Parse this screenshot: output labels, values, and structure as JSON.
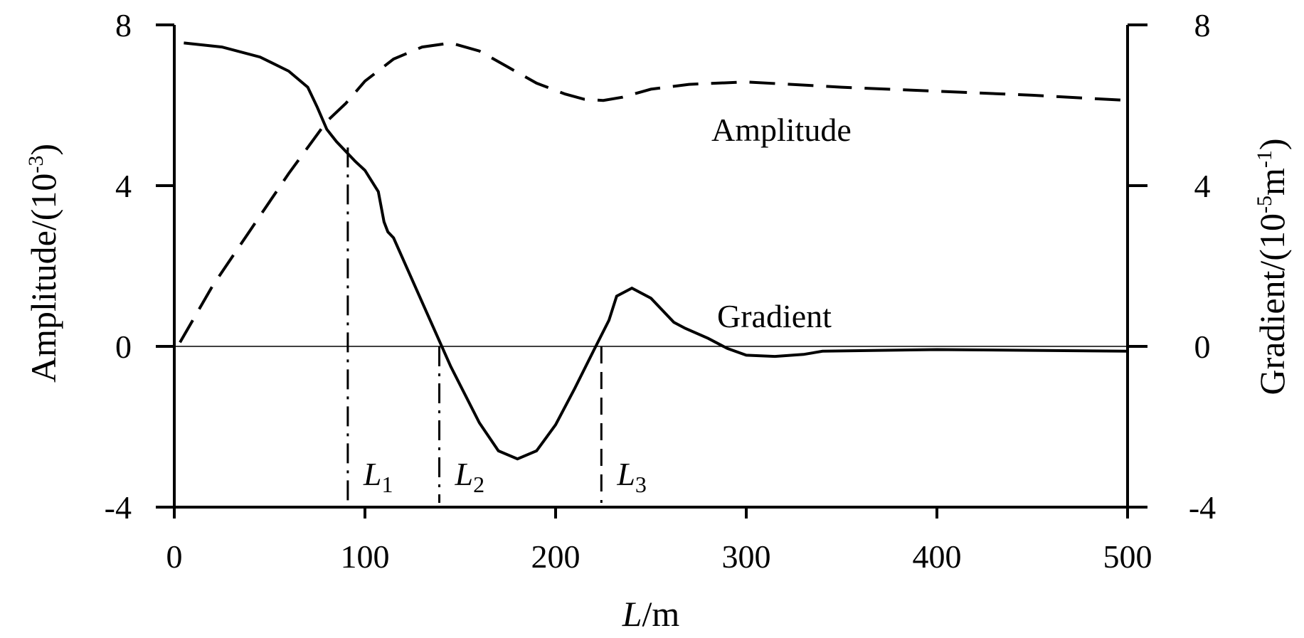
{
  "chart_data": {
    "type": "line",
    "xlabel": {
      "italic": "L",
      "unit": "/m"
    },
    "ylabel_left": {
      "text": "Amplitude/(10",
      "sup": "-3",
      "close": ")"
    },
    "ylabel_right": {
      "text": "Gradient/(10",
      "sup1": "-5",
      "mid": "m",
      "sup2": "-1",
      "close": ")"
    },
    "xlim": [
      0,
      500
    ],
    "ylim": [
      -4,
      8
    ],
    "x_ticks": [
      "0",
      "100",
      "200",
      "300",
      "400",
      "500"
    ],
    "y_ticks_left": [
      "-4",
      "0",
      "4",
      "8"
    ],
    "y_ticks_right": [
      "-4",
      "0",
      "4",
      "8"
    ],
    "series": [
      {
        "name": "Amplitude",
        "style": "dashed",
        "x": [
          3,
          20,
          40,
          60,
          70,
          80,
          90,
          100,
          115,
          130,
          145,
          160,
          175,
          190,
          205,
          215,
          225,
          235,
          250,
          270,
          300,
          350,
          400,
          450,
          500
        ],
        "y": [
          0.1,
          1.5,
          2.9,
          4.3,
          4.95,
          5.6,
          6.05,
          6.6,
          7.15,
          7.45,
          7.55,
          7.35,
          6.95,
          6.55,
          6.28,
          6.15,
          6.12,
          6.2,
          6.4,
          6.52,
          6.58,
          6.45,
          6.35,
          6.25,
          6.12
        ]
      },
      {
        "name": "Gradient",
        "style": "solid",
        "x": [
          5,
          25,
          45,
          60,
          70,
          75,
          80,
          85,
          90,
          95,
          100,
          107,
          110,
          112,
          115,
          130,
          145,
          160,
          170,
          180,
          190,
          200,
          210,
          220,
          228,
          232,
          240,
          250,
          262,
          268,
          280,
          290,
          300,
          315,
          330,
          340,
          400,
          450,
          500
        ],
        "y": [
          7.55,
          7.45,
          7.2,
          6.85,
          6.45,
          5.95,
          5.4,
          5.1,
          4.85,
          4.6,
          4.38,
          3.85,
          3.1,
          2.85,
          2.7,
          1.1,
          -0.5,
          -1.9,
          -2.6,
          -2.8,
          -2.6,
          -1.95,
          -1.05,
          -0.1,
          0.65,
          1.25,
          1.45,
          1.2,
          0.6,
          0.45,
          0.2,
          -0.05,
          -0.22,
          -0.25,
          -0.2,
          -0.12,
          -0.08,
          -0.1,
          -0.12
        ]
      }
    ],
    "markers": [
      {
        "label": "L",
        "sub": "1",
        "x": 91,
        "style": "dashdot",
        "y_top": 4.95
      },
      {
        "label": "L",
        "sub": "2",
        "x": 139,
        "style": "dashdot",
        "y_top": 0
      },
      {
        "label": "L",
        "sub": "3",
        "x": 224,
        "style": "dashed",
        "y_top": 0
      }
    ]
  }
}
